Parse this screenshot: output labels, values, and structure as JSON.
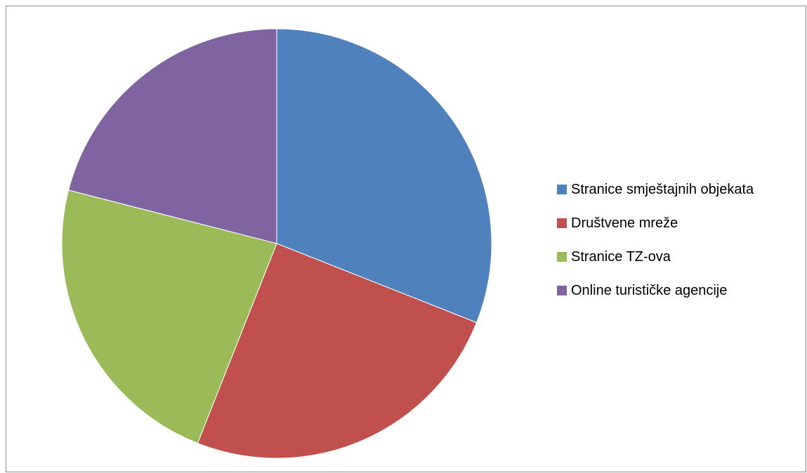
{
  "chart_data": {
    "type": "pie",
    "categories": [
      "Stranice smještajnih objekata",
      "Društvene mreže",
      "Stranice TZ-ova",
      "Online turističke agencije"
    ],
    "values": [
      31,
      25,
      23,
      21
    ],
    "colors": [
      "#4F81BD",
      "#C0504D",
      "#9BBB59",
      "#8064A2"
    ],
    "start_angle_deg": 0,
    "direction": "clockwise",
    "legend": "right",
    "title": ""
  }
}
